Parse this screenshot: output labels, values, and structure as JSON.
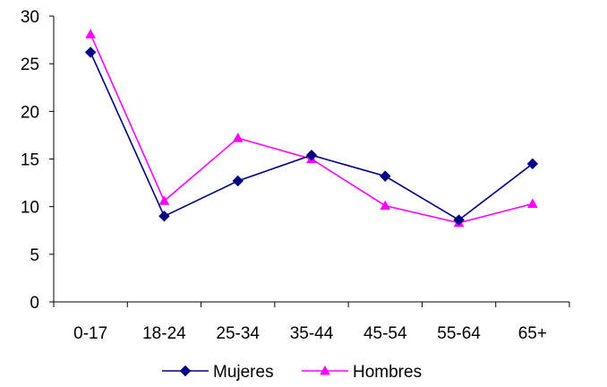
{
  "chart_data": {
    "type": "line",
    "title": "",
    "xlabel": "",
    "ylabel": "",
    "categories": [
      "0-17",
      "18-24",
      "25-34",
      "35-44",
      "45-54",
      "55-64",
      "65+"
    ],
    "ylim": [
      0,
      30
    ],
    "yticks": [
      0,
      5,
      10,
      15,
      20,
      25,
      30
    ],
    "grid": false,
    "legend_position": "bottom",
    "series": [
      {
        "name": "Mujeres",
        "values": [
          26.2,
          9.0,
          12.7,
          15.4,
          13.2,
          8.6,
          14.5
        ],
        "color": "#000080",
        "marker": "diamond"
      },
      {
        "name": "Hombres",
        "values": [
          28.1,
          10.6,
          17.2,
          15.0,
          10.1,
          8.3,
          10.3
        ],
        "color": "#FF00FF",
        "marker": "triangle"
      }
    ]
  }
}
